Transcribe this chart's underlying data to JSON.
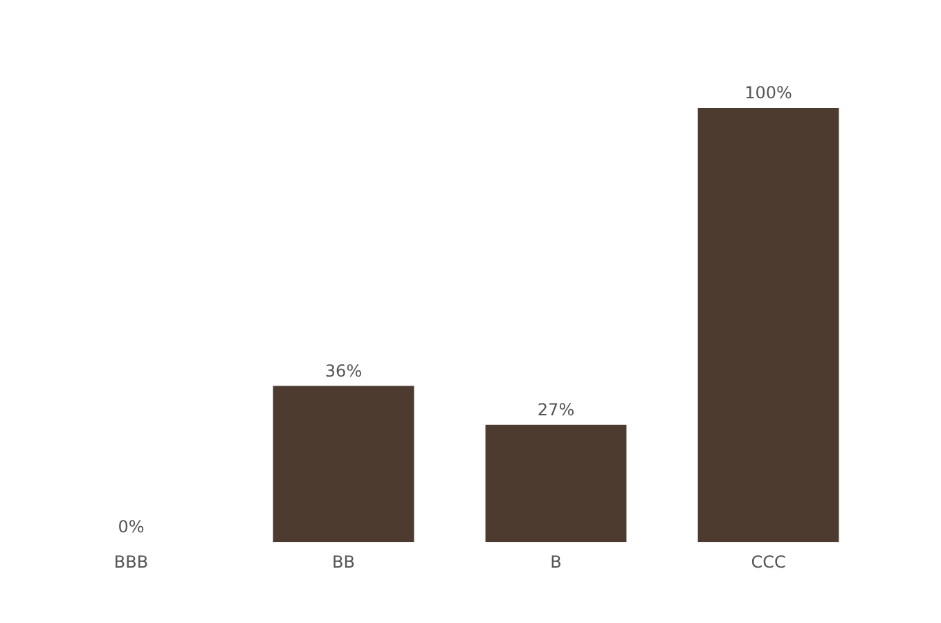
{
  "chart_data": {
    "type": "bar",
    "categories": [
      "BBB",
      "BB",
      "B",
      "CCC"
    ],
    "values": [
      0,
      36,
      27,
      100
    ],
    "color": "#4e3b30",
    "value_labels": [
      "0%",
      "36%",
      "27%",
      "100%"
    ],
    "grid": false,
    "legend": false,
    "tick_labels": "x"
  }
}
